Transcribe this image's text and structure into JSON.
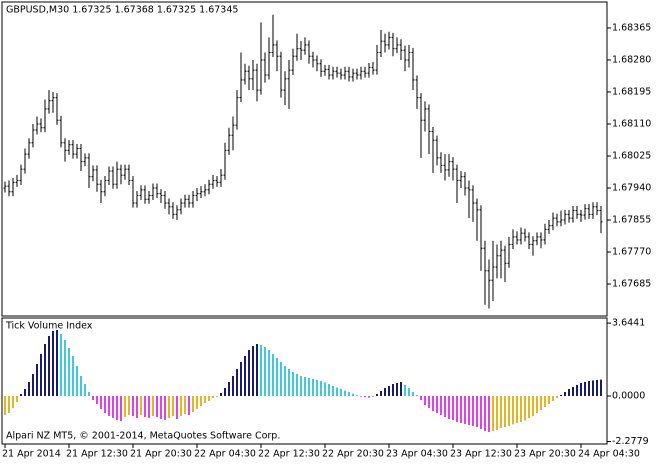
{
  "chart_data": [
    {
      "type": "ohlc",
      "title": "GBPUSD,M30  1.67325 1.67368 1.67325 1.67345",
      "color": "#000000",
      "categories": [
        "21 Apr 2014",
        null,
        null,
        null,
        null,
        null,
        null,
        null,
        null,
        null,
        null,
        null,
        null,
        null,
        null,
        null,
        "21 Apr 12:30",
        null,
        null,
        null,
        null,
        null,
        null,
        null,
        null,
        null,
        null,
        null,
        null,
        null,
        null,
        null,
        "21 Apr 20:30",
        null,
        null,
        null,
        null,
        null,
        null,
        null,
        null,
        null,
        null,
        null,
        null,
        null,
        null,
        null,
        "22 Apr 04:30",
        null,
        null,
        null,
        null,
        null,
        null,
        null,
        null,
        null,
        null,
        null,
        null,
        null,
        null,
        null,
        "22 Apr 12:30",
        null,
        null,
        null,
        null,
        null,
        null,
        null,
        null,
        null,
        null,
        null,
        null,
        null,
        null,
        null,
        "22 Apr 20:30",
        null,
        null,
        null,
        null,
        null,
        null,
        null,
        null,
        null,
        null,
        null,
        null,
        null,
        null,
        null,
        "23 Apr 04:30",
        null,
        null,
        null,
        null,
        null,
        null,
        null,
        null,
        null,
        null,
        null,
        null,
        null,
        null,
        null,
        "23 Apr 12:30",
        null,
        null,
        null,
        null,
        null,
        null,
        null,
        null,
        null,
        null,
        null,
        null,
        null,
        null,
        null,
        "23 Apr 20:30",
        null,
        null,
        null,
        null,
        null,
        null,
        null,
        null,
        null,
        null,
        null,
        null,
        null,
        null,
        null,
        "24 Apr 04:30",
        null,
        null,
        null,
        null,
        null
      ],
      "open": [
        1.6794,
        1.67945,
        1.6793,
        1.67955,
        1.6796,
        1.6799,
        1.6803,
        1.6806,
        1.68094,
        1.6811,
        1.681,
        1.6815,
        1.68172,
        1.6818,
        1.6812,
        1.6806,
        1.6804,
        1.68055,
        1.6803,
        1.68045,
        1.6801,
        1.6802,
        1.6797,
        1.67988,
        1.6795,
        1.6793,
        1.6796,
        1.67985,
        1.6795,
        1.6799,
        1.67974,
        1.6799,
        1.6796,
        1.679,
        1.6792,
        1.67935,
        1.6791,
        1.6792,
        1.6794,
        1.67925,
        1.6792,
        1.679,
        1.6789,
        1.6787,
        1.67882,
        1.679,
        1.6791,
        1.679,
        1.6792,
        1.67925,
        1.6793,
        1.67935,
        1.6795,
        1.6796,
        1.67955,
        1.67974,
        1.6804,
        1.6808,
        1.68107,
        1.6818,
        1.68227,
        1.6825,
        1.6823,
        1.68253,
        1.682,
        1.6828,
        1.6824,
        1.683,
        1.6832,
        1.6829,
        1.682,
        1.6823,
        1.68253,
        1.6829,
        1.6831,
        1.68306,
        1.6832,
        1.6829,
        1.6828,
        1.6827,
        1.6825,
        1.68255,
        1.6824,
        1.6825,
        1.68245,
        1.6824,
        1.6825,
        1.68235,
        1.68245,
        1.6824,
        1.6825,
        1.68245,
        1.6826,
        1.68253,
        1.683,
        1.6833,
        1.6832,
        1.6834,
        1.6831,
        1.6832,
        1.68306,
        1.6828,
        1.683,
        1.68227,
        1.6818,
        1.6812,
        1.6815,
        1.6809,
        1.68067,
        1.6802,
        1.68,
        1.67988,
        1.6801,
        1.6799,
        1.6796,
        1.6797,
        1.6794,
        1.67935,
        1.679,
        1.67882,
        1.6778,
        1.6772,
        1.67695,
        1.6773,
        1.6776,
        1.67775,
        1.6774,
        1.6779,
        1.6781,
        1.67802,
        1.6782,
        1.6781,
        1.6779,
        1.678,
        1.6781,
        1.67802,
        1.6783,
        1.6784,
        1.6786,
        1.6785,
        1.67855,
        1.6787,
        1.6786,
        1.6788,
        1.6787,
        1.67868,
        1.67885,
        1.6787,
        1.6789,
        1.6788
      ],
      "high": [
        1.67957,
        1.6796,
        1.67967,
        1.67975,
        1.68002,
        1.68045,
        1.68072,
        1.6811,
        1.6813,
        1.68125,
        1.68175,
        1.682,
        1.68195,
        1.68192,
        1.68132,
        1.68072,
        1.68067,
        1.68067,
        1.68057,
        1.68057,
        1.68032,
        1.68032,
        1.68,
        1.68,
        1.67962,
        1.67972,
        1.67997,
        1.67997,
        1.6801,
        1.68002,
        1.68002,
        1.68002,
        1.67972,
        1.67932,
        1.67947,
        1.67947,
        1.67932,
        1.67952,
        1.67952,
        1.67937,
        1.67932,
        1.67912,
        1.67902,
        1.67894,
        1.67912,
        1.67922,
        1.67922,
        1.67932,
        1.6794,
        1.67945,
        1.6795,
        1.67962,
        1.67975,
        1.67972,
        1.6799,
        1.6806,
        1.681,
        1.6813,
        1.682,
        1.683,
        1.6827,
        1.68265,
        1.6828,
        1.6827,
        1.6838,
        1.683,
        1.6834,
        1.684,
        1.68332,
        1.68302,
        1.6825,
        1.6828,
        1.6831,
        1.6835,
        1.6833,
        1.6834,
        1.68332,
        1.68302,
        1.68292,
        1.68282,
        1.68267,
        1.68267,
        1.68262,
        1.68262,
        1.68257,
        1.68262,
        1.68262,
        1.68257,
        1.68257,
        1.68262,
        1.68262,
        1.68272,
        1.68275,
        1.6832,
        1.6836,
        1.6835,
        1.68355,
        1.68352,
        1.6834,
        1.68335,
        1.68318,
        1.6832,
        1.68312,
        1.68239,
        1.68192,
        1.6817,
        1.68162,
        1.68102,
        1.68079,
        1.68035,
        1.6803,
        1.6803,
        1.68022,
        1.68002,
        1.67985,
        1.67982,
        1.6796,
        1.67947,
        1.67912,
        1.67894,
        1.678,
        1.6775,
        1.678,
        1.6779,
        1.678,
        1.67787,
        1.6781,
        1.6783,
        1.67825,
        1.67835,
        1.67832,
        1.67822,
        1.67812,
        1.67822,
        1.67822,
        1.67845,
        1.67855,
        1.67875,
        1.67872,
        1.6788,
        1.67882,
        1.67882,
        1.67892,
        1.67892,
        1.67882,
        1.67897,
        1.67897,
        1.67902,
        1.67902,
        1.67892
      ],
      "low": [
        1.67928,
        1.67918,
        1.67918,
        1.67943,
        1.67948,
        1.67978,
        1.68018,
        1.68048,
        1.68082,
        1.68088,
        1.68088,
        1.68138,
        1.6814,
        1.68108,
        1.68048,
        1.6801,
        1.68028,
        1.68018,
        1.68018,
        1.67985,
        1.67998,
        1.6794,
        1.67958,
        1.6793,
        1.679,
        1.67918,
        1.67948,
        1.67938,
        1.67938,
        1.6795,
        1.67962,
        1.67948,
        1.67888,
        1.67888,
        1.67908,
        1.67898,
        1.67898,
        1.67908,
        1.67913,
        1.679,
        1.67885,
        1.6787,
        1.67858,
        1.67855,
        1.6787,
        1.67888,
        1.67888,
        1.67888,
        1.67905,
        1.67913,
        1.67918,
        1.67923,
        1.67938,
        1.67943,
        1.67943,
        1.67962,
        1.68028,
        1.6804,
        1.68095,
        1.68168,
        1.68215,
        1.682,
        1.682,
        1.6817,
        1.68188,
        1.6822,
        1.68228,
        1.68288,
        1.6825,
        1.6818,
        1.6816,
        1.6815,
        1.6824,
        1.68278,
        1.6828,
        1.68294,
        1.6827,
        1.6826,
        1.6825,
        1.68235,
        1.68238,
        1.68228,
        1.68228,
        1.68233,
        1.68228,
        1.68228,
        1.68223,
        1.68223,
        1.68228,
        1.68228,
        1.68233,
        1.68233,
        1.68241,
        1.68241,
        1.68288,
        1.683,
        1.68308,
        1.6829,
        1.68298,
        1.6828,
        1.6825,
        1.6826,
        1.682,
        1.6815,
        1.6802,
        1.6809,
        1.6803,
        1.6798,
        1.68,
        1.6798,
        1.6796,
        1.6797,
        1.6796,
        1.679,
        1.6794,
        1.6792,
        1.6786,
        1.6785,
        1.678,
        1.6772,
        1.6763,
        1.6762,
        1.6764,
        1.677,
        1.677,
        1.6769,
        1.67728,
        1.67778,
        1.6779,
        1.6779,
        1.67798,
        1.67778,
        1.6776,
        1.67788,
        1.6778,
        1.6779,
        1.67818,
        1.67828,
        1.67838,
        1.67838,
        1.67843,
        1.67848,
        1.67848,
        1.67858,
        1.6785,
        1.67856,
        1.67858,
        1.67858,
        1.67868,
        1.6782
      ],
      "close": [
        1.67945,
        1.6793,
        1.67955,
        1.6796,
        1.6799,
        1.6803,
        1.6806,
        1.68094,
        1.6811,
        1.681,
        1.6815,
        1.68172,
        1.6818,
        1.6812,
        1.6806,
        1.6804,
        1.68055,
        1.6803,
        1.68045,
        1.6801,
        1.6802,
        1.6797,
        1.67988,
        1.6795,
        1.6793,
        1.6796,
        1.67985,
        1.6795,
        1.6799,
        1.67974,
        1.6799,
        1.6796,
        1.679,
        1.6792,
        1.67935,
        1.6791,
        1.6792,
        1.6794,
        1.67925,
        1.6792,
        1.679,
        1.6789,
        1.6787,
        1.67882,
        1.679,
        1.6791,
        1.679,
        1.6792,
        1.67925,
        1.6793,
        1.67935,
        1.6795,
        1.6796,
        1.67955,
        1.67974,
        1.6804,
        1.6808,
        1.68107,
        1.6818,
        1.68227,
        1.6825,
        1.6823,
        1.68253,
        1.682,
        1.6828,
        1.6824,
        1.683,
        1.6832,
        1.6829,
        1.682,
        1.6823,
        1.68253,
        1.6829,
        1.6831,
        1.68306,
        1.6832,
        1.6829,
        1.6828,
        1.6827,
        1.6825,
        1.68255,
        1.6824,
        1.6825,
        1.68245,
        1.6824,
        1.6825,
        1.68235,
        1.68245,
        1.6824,
        1.6825,
        1.68245,
        1.6826,
        1.68253,
        1.683,
        1.6833,
        1.6832,
        1.6834,
        1.6831,
        1.6832,
        1.68306,
        1.6828,
        1.683,
        1.68227,
        1.6818,
        1.6812,
        1.6815,
        1.6809,
        1.68067,
        1.6802,
        1.68,
        1.67988,
        1.6801,
        1.6799,
        1.6796,
        1.6797,
        1.6794,
        1.67935,
        1.679,
        1.67882,
        1.6778,
        1.6772,
        1.67695,
        1.6773,
        1.6776,
        1.67775,
        1.6774,
        1.6779,
        1.6781,
        1.67802,
        1.6782,
        1.6781,
        1.6779,
        1.678,
        1.6781,
        1.67802,
        1.6783,
        1.6784,
        1.6786,
        1.6785,
        1.67855,
        1.6787,
        1.6786,
        1.6788,
        1.6787,
        1.67868,
        1.67885,
        1.6787,
        1.6789,
        1.6788,
        1.6785
      ],
      "ylim": [
        1.676,
        1.68434
      ],
      "yticks": [
        1.68365,
        {
          "value": 1.6828,
          "label": "1.68280"
        },
        1.68195,
        {
          "value": 1.6811,
          "label": "1.68110"
        },
        1.68025,
        {
          "value": 1.6794,
          "label": "1.67940"
        },
        1.67855,
        {
          "value": 1.6777,
          "label": "1.67770"
        },
        1.67685
      ]
    },
    {
      "type": "bar",
      "title": "Tick Volume Index",
      "footer": "Alpari NZ MT5, © 2001-2014, MetaQuotes Software Corp.",
      "colors": {
        "rising_positive": "#191970",
        "falling_positive": "#40c8e0",
        "falling_negative": "#e040e8",
        "rising_negative": "#e8b424"
      },
      "values": [
        -0.95,
        -0.85,
        -0.6,
        -0.3,
        0.1,
        0.35,
        0.7,
        1.1,
        1.6,
        2.1,
        2.6,
        3.0,
        3.25,
        3.3,
        3.1,
        2.8,
        2.4,
        2.0,
        1.5,
        1.0,
        0.6,
        0.2,
        -0.2,
        -0.4,
        -0.65,
        -0.85,
        -1.0,
        -1.1,
        -1.2,
        -1.25,
        -1.05,
        -0.95,
        -1.0,
        -1.1,
        -0.95,
        -1.05,
        -1.1,
        -1.0,
        -1.05,
        -1.15,
        -1.2,
        -1.1,
        -1.0,
        -1.15,
        -1.0,
        -0.9,
        -0.95,
        -0.8,
        -0.65,
        -0.5,
        -0.35,
        -0.25,
        -0.1,
        -0.05,
        0.15,
        0.4,
        0.7,
        1.0,
        1.35,
        1.7,
        2.0,
        2.3,
        2.5,
        2.6,
        2.55,
        2.45,
        2.3,
        2.1,
        1.9,
        1.7,
        1.5,
        1.35,
        1.2,
        1.1,
        1.0,
        0.95,
        0.9,
        0.85,
        0.8,
        0.75,
        0.68,
        0.6,
        0.5,
        0.42,
        0.35,
        0.27,
        0.2,
        0.12,
        0.04,
        -0.03,
        -0.06,
        -0.08,
        -0.05,
        0.1,
        0.25,
        0.4,
        0.5,
        0.6,
        0.65,
        0.7,
        0.55,
        0.4,
        0.2,
        0.05,
        -0.2,
        -0.45,
        -0.6,
        -0.75,
        -0.85,
        -0.95,
        -1.05,
        -1.15,
        -1.2,
        -1.3,
        -1.35,
        -1.4,
        -1.45,
        -1.5,
        -1.55,
        -1.65,
        -1.75,
        -1.8,
        -1.75,
        -1.7,
        -1.6,
        -1.55,
        -1.5,
        -1.42,
        -1.35,
        -1.3,
        -1.22,
        -1.1,
        -1.0,
        -0.85,
        -0.7,
        -0.55,
        -0.4,
        -0.25,
        -0.1,
        0.05,
        0.2,
        0.35,
        0.45,
        0.55,
        0.65,
        0.7,
        0.75,
        0.78,
        0.8,
        0.82
      ],
      "ylim": [
        -2.4,
        3.9
      ],
      "yticks": [
        3.6441,
        {
          "value": 0,
          "label": "0.0000"
        },
        -2.2779
      ]
    }
  ]
}
